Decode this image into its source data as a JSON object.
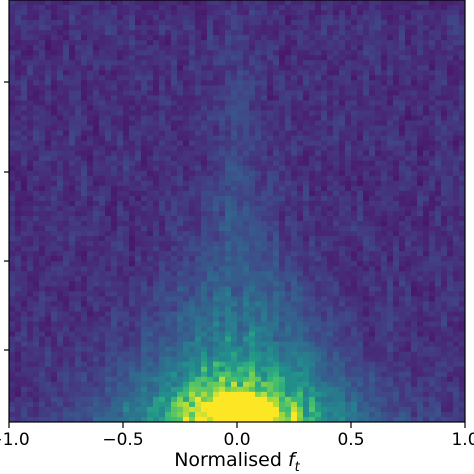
{
  "chart_data": {
    "type": "heatmap",
    "title": "",
    "xlabel": "Normalised",
    "xlabel_symbol": "f",
    "xlabel_subscript": "t",
    "ylabel": "",
    "xlim": [
      -1.0,
      1.0
    ],
    "x_ticks": [
      -1.0,
      -0.5,
      0.0,
      0.5,
      1.0
    ],
    "x_tick_labels": [
      "−1.0",
      "−0.5",
      "0.0",
      "0.5",
      "1.0"
    ],
    "y_tick_count": 4,
    "colormap": "viridis",
    "value_range": [
      0,
      1
    ],
    "features": [
      {
        "name": "low-frequency peak",
        "x_center": 0.0,
        "intensity": 0.85,
        "band": "bottom"
      },
      {
        "name": "central ridge",
        "x_center": 0.0,
        "intensity": 0.45,
        "band": "middle"
      },
      {
        "name": "background noise",
        "intensity": 0.12,
        "band": "all"
      }
    ],
    "grid": false
  },
  "colors": {
    "viridis_low": "#440154",
    "viridis_mid": "#21918c",
    "viridis_high": "#fde725"
  }
}
